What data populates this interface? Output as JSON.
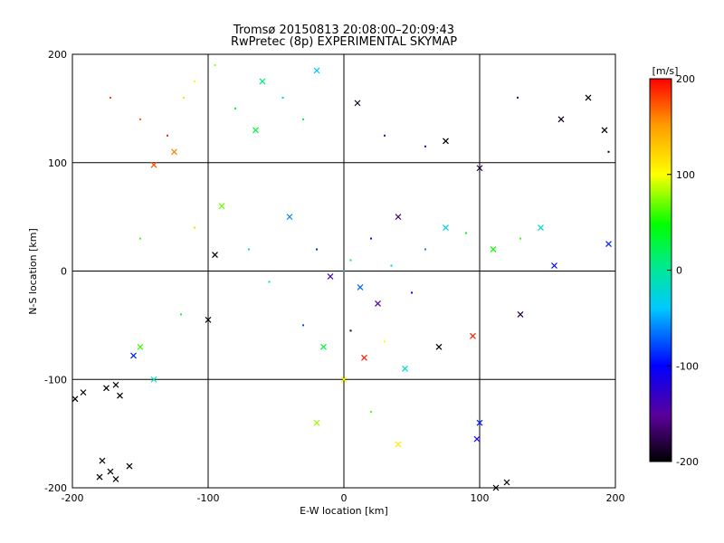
{
  "chart_data": {
    "type": "scatter",
    "title": "Tromsø 20150813 20:08:00–20:09:43",
    "subtitle": "RwPretec (8p) EXPERIMENTAL SKYMAP",
    "xlabel": "E-W location [km]",
    "ylabel": "N-S location [km]",
    "xlim": [
      -200,
      200
    ],
    "ylim": [
      -200,
      200
    ],
    "xticks": [
      -200,
      -100,
      0,
      100,
      200
    ],
    "yticks": [
      -200,
      -100,
      0,
      100,
      200
    ],
    "grid": true,
    "colorbar": {
      "label": "[m/s]",
      "min": -200,
      "max": 200,
      "ticks": [
        200,
        100,
        0,
        -100,
        -200
      ],
      "colormap": "rainbow (black-purple-blue-cyan-green-yellow-red)"
    },
    "markers": [
      "dot",
      "x"
    ],
    "series": [
      {
        "values": [
          {
            "x": -172,
            "y": 160,
            "v": 180,
            "m": "dot"
          },
          {
            "x": -150,
            "y": 140,
            "v": 170,
            "m": "dot"
          },
          {
            "x": -130,
            "y": 125,
            "v": 190,
            "m": "dot"
          },
          {
            "x": -125,
            "y": 110,
            "v": 160,
            "m": "x"
          },
          {
            "x": -140,
            "y": 98,
            "v": 175,
            "m": "x"
          },
          {
            "x": -118,
            "y": 160,
            "v": 120,
            "m": "dot"
          },
          {
            "x": -110,
            "y": 175,
            "v": 100,
            "m": "dot"
          },
          {
            "x": -95,
            "y": 190,
            "v": 80,
            "m": "dot"
          },
          {
            "x": -80,
            "y": 150,
            "v": 40,
            "m": "dot"
          },
          {
            "x": -65,
            "y": 130,
            "v": 30,
            "m": "x"
          },
          {
            "x": -60,
            "y": 175,
            "v": 10,
            "m": "x"
          },
          {
            "x": -45,
            "y": 160,
            "v": -30,
            "m": "dot"
          },
          {
            "x": -30,
            "y": 140,
            "v": 20,
            "m": "dot"
          },
          {
            "x": -20,
            "y": 185,
            "v": -40,
            "m": "x"
          },
          {
            "x": 10,
            "y": 155,
            "v": -190,
            "m": "x"
          },
          {
            "x": 30,
            "y": 125,
            "v": -140,
            "m": "dot"
          },
          {
            "x": 60,
            "y": 115,
            "v": -120,
            "m": "dot"
          },
          {
            "x": 75,
            "y": 120,
            "v": -200,
            "m": "x"
          },
          {
            "x": 100,
            "y": 95,
            "v": -180,
            "m": "x"
          },
          {
            "x": 128,
            "y": 160,
            "v": -160,
            "m": "dot"
          },
          {
            "x": 160,
            "y": 140,
            "v": -190,
            "m": "x"
          },
          {
            "x": 180,
            "y": 160,
            "v": -200,
            "m": "x"
          },
          {
            "x": 192,
            "y": 130,
            "v": -200,
            "m": "x"
          },
          {
            "x": 195,
            "y": 110,
            "v": -200,
            "m": "dot"
          },
          {
            "x": -150,
            "y": 30,
            "v": 60,
            "m": "dot"
          },
          {
            "x": -110,
            "y": 40,
            "v": 120,
            "m": "dot"
          },
          {
            "x": -90,
            "y": 60,
            "v": 70,
            "m": "x"
          },
          {
            "x": -70,
            "y": 20,
            "v": 10,
            "m": "dot"
          },
          {
            "x": -95,
            "y": 15,
            "v": -200,
            "m": "x"
          },
          {
            "x": -55,
            "y": -10,
            "v": -20,
            "m": "dot"
          },
          {
            "x": -40,
            "y": 50,
            "v": -60,
            "m": "x"
          },
          {
            "x": -20,
            "y": 20,
            "v": -90,
            "m": "dot"
          },
          {
            "x": -10,
            "y": -5,
            "v": -130,
            "m": "x"
          },
          {
            "x": 0,
            "y": 0,
            "v": -50,
            "m": "dot"
          },
          {
            "x": 5,
            "y": 10,
            "v": 20,
            "m": "dot"
          },
          {
            "x": 12,
            "y": -15,
            "v": -70,
            "m": "x"
          },
          {
            "x": 20,
            "y": 30,
            "v": -110,
            "m": "dot"
          },
          {
            "x": 25,
            "y": -30,
            "v": -150,
            "m": "x"
          },
          {
            "x": 35,
            "y": 5,
            "v": -40,
            "m": "dot"
          },
          {
            "x": 40,
            "y": 50,
            "v": -170,
            "m": "x"
          },
          {
            "x": 50,
            "y": -20,
            "v": -100,
            "m": "dot"
          },
          {
            "x": 60,
            "y": 20,
            "v": -60,
            "m": "dot"
          },
          {
            "x": 75,
            "y": 40,
            "v": -30,
            "m": "x"
          },
          {
            "x": 90,
            "y": 35,
            "v": 40,
            "m": "dot"
          },
          {
            "x": 110,
            "y": 20,
            "v": 50,
            "m": "x"
          },
          {
            "x": 130,
            "y": 30,
            "v": 60,
            "m": "dot"
          },
          {
            "x": 145,
            "y": 40,
            "v": -20,
            "m": "x"
          },
          {
            "x": 155,
            "y": 5,
            "v": -100,
            "m": "x"
          },
          {
            "x": 195,
            "y": 25,
            "v": -90,
            "m": "x"
          },
          {
            "x": -30,
            "y": -50,
            "v": -80,
            "m": "dot"
          },
          {
            "x": -15,
            "y": -70,
            "v": 30,
            "m": "x"
          },
          {
            "x": 5,
            "y": -55,
            "v": -190,
            "m": "dot"
          },
          {
            "x": 15,
            "y": -80,
            "v": 190,
            "m": "x"
          },
          {
            "x": 30,
            "y": -65,
            "v": 100,
            "m": "dot"
          },
          {
            "x": 45,
            "y": -90,
            "v": -20,
            "m": "x"
          },
          {
            "x": 70,
            "y": -70,
            "v": -200,
            "m": "x"
          },
          {
            "x": 95,
            "y": -60,
            "v": 190,
            "m": "x"
          },
          {
            "x": 130,
            "y": -40,
            "v": -180,
            "m": "x"
          },
          {
            "x": -120,
            "y": -40,
            "v": 20,
            "m": "dot"
          },
          {
            "x": -100,
            "y": -45,
            "v": -200,
            "m": "x"
          },
          {
            "x": -150,
            "y": -70,
            "v": 60,
            "m": "x"
          },
          {
            "x": -155,
            "y": -78,
            "v": -90,
            "m": "x"
          },
          {
            "x": -140,
            "y": -100,
            "v": -10,
            "m": "x"
          },
          {
            "x": -168,
            "y": -105,
            "v": -200,
            "m": "x"
          },
          {
            "x": -175,
            "y": -108,
            "v": -200,
            "m": "x"
          },
          {
            "x": -192,
            "y": -112,
            "v": -200,
            "m": "x"
          },
          {
            "x": -198,
            "y": -118,
            "v": -200,
            "m": "x"
          },
          {
            "x": -165,
            "y": -115,
            "v": -200,
            "m": "x"
          },
          {
            "x": -178,
            "y": -175,
            "v": -200,
            "m": "x"
          },
          {
            "x": -172,
            "y": -185,
            "v": -200,
            "m": "x"
          },
          {
            "x": -168,
            "y": -192,
            "v": -200,
            "m": "x"
          },
          {
            "x": -180,
            "y": -190,
            "v": -200,
            "m": "x"
          },
          {
            "x": -158,
            "y": -180,
            "v": -200,
            "m": "x"
          },
          {
            "x": -20,
            "y": -140,
            "v": 80,
            "m": "x"
          },
          {
            "x": 0,
            "y": -100,
            "v": 100,
            "m": "x"
          },
          {
            "x": 20,
            "y": -130,
            "v": 60,
            "m": "dot"
          },
          {
            "x": 40,
            "y": -160,
            "v": 110,
            "m": "x"
          },
          {
            "x": 100,
            "y": -140,
            "v": -90,
            "m": "x"
          },
          {
            "x": 98,
            "y": -155,
            "v": -110,
            "m": "x"
          },
          {
            "x": 112,
            "y": -200,
            "v": -200,
            "m": "x"
          },
          {
            "x": 120,
            "y": -195,
            "v": -200,
            "m": "x"
          }
        ]
      }
    ]
  }
}
